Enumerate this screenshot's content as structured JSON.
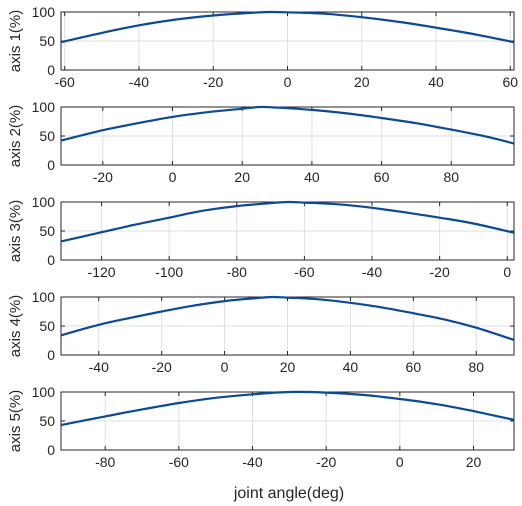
{
  "figure": {
    "xlabel": "joint angle(deg)"
  },
  "chart_data": [
    {
      "type": "line",
      "ylabel": "axis 1(%)",
      "xlim": [
        -61,
        61
      ],
      "ylim": [
        0,
        100
      ],
      "xticks": [
        -60,
        -40,
        -20,
        0,
        20,
        40,
        60
      ],
      "yticks": [
        0,
        50,
        100
      ],
      "grid": true,
      "x": [
        -61,
        -50,
        -40,
        -30,
        -20,
        -10,
        -5,
        0,
        10,
        20,
        30,
        40,
        50,
        61
      ],
      "y": [
        48,
        64,
        77,
        87,
        94,
        98.5,
        100,
        99.5,
        97,
        91,
        83,
        73,
        62,
        48
      ]
    },
    {
      "type": "line",
      "ylabel": "axis 2(%)",
      "xlim": [
        -32,
        98
      ],
      "ylim": [
        0,
        100
      ],
      "xticks": [
        -20,
        0,
        20,
        40,
        60,
        80
      ],
      "yticks": [
        0,
        50,
        100
      ],
      "grid": true,
      "x": [
        -32,
        -20,
        -10,
        0,
        10,
        20,
        25,
        30,
        40,
        50,
        60,
        70,
        80,
        90,
        98
      ],
      "y": [
        42,
        60,
        72,
        83,
        91,
        97,
        100,
        99,
        95,
        89,
        81,
        72,
        61,
        49,
        37
      ]
    },
    {
      "type": "line",
      "ylabel": "axis 3(%)",
      "xlim": [
        -132,
        2
      ],
      "ylim": [
        0,
        100
      ],
      "xticks": [
        -120,
        -100,
        -80,
        -60,
        -40,
        -20,
        0
      ],
      "yticks": [
        0,
        50,
        100
      ],
      "grid": true,
      "x": [
        -132,
        -120,
        -110,
        -100,
        -90,
        -80,
        -70,
        -65,
        -60,
        -50,
        -40,
        -30,
        -20,
        -10,
        2
      ],
      "y": [
        32,
        48,
        61,
        73,
        85,
        93,
        98,
        100,
        99,
        96,
        90,
        82,
        73,
        63,
        47
      ]
    },
    {
      "type": "line",
      "ylabel": "axis 4(%)",
      "xlim": [
        -52,
        92
      ],
      "ylim": [
        0,
        100
      ],
      "xticks": [
        -40,
        -20,
        0,
        20,
        40,
        60,
        80
      ],
      "yticks": [
        0,
        50,
        100
      ],
      "grid": true,
      "x": [
        -52,
        -40,
        -30,
        -20,
        -10,
        0,
        10,
        15,
        20,
        30,
        40,
        50,
        60,
        70,
        80,
        92
      ],
      "y": [
        34,
        52,
        64,
        75,
        85,
        93,
        98,
        100,
        99,
        96,
        90,
        82,
        72,
        61,
        47,
        26
      ]
    },
    {
      "type": "line",
      "ylabel": "axis 5(%)",
      "xlim": [
        -92,
        31
      ],
      "ylim": [
        0,
        100
      ],
      "xticks": [
        -80,
        -60,
        -40,
        -20,
        0,
        20
      ],
      "yticks": [
        0,
        50,
        100
      ],
      "grid": true,
      "x": [
        -92,
        -80,
        -70,
        -60,
        -50,
        -40,
        -30,
        -20,
        -10,
        0,
        10,
        20,
        31
      ],
      "y": [
        43,
        58,
        70,
        81,
        90,
        96,
        100,
        99,
        95,
        88,
        79,
        67,
        52
      ]
    }
  ]
}
